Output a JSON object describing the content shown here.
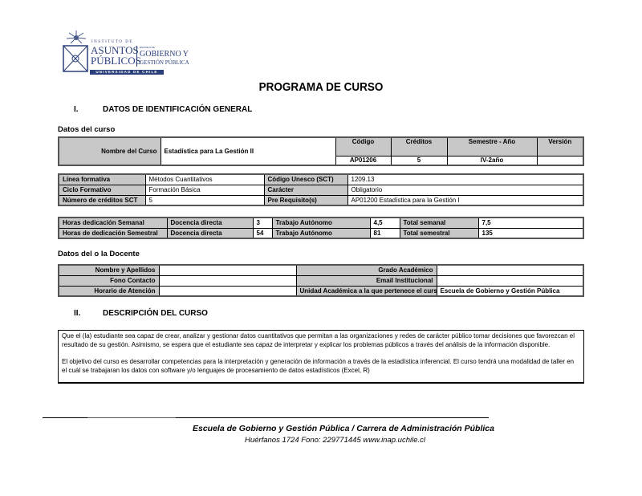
{
  "logo": {
    "line1": "INSTITUTO DE",
    "line2": "ASUNTOS",
    "line3": "PÚBLICOS",
    "line4": "ESCUELA DE",
    "line5": "GOBIERNO Y",
    "line6": "GESTIÓN PÚBLICA",
    "band": "UNIVERSIDAD DE CHILE"
  },
  "title": "PROGRAMA DE CURSO",
  "section1": {
    "num": "I.",
    "title": "DATOS DE IDENTIFICACIÓN GENERAL"
  },
  "datos_curso": {
    "heading": "Datos del curso",
    "nombre_label": "Nombre del Curso",
    "nombre": "Estadística para La Gestión II",
    "codigo_label": "Código",
    "codigo": "AP01206",
    "creditos_label": "Créditos",
    "creditos": "5",
    "semestre_label": "Semestre - Año",
    "semestre": "IV-2año",
    "version_label": "Versión",
    "version": ""
  },
  "info": [
    [
      "Línea formativa",
      "Métodos Cuantitativos",
      "Código Unesco (SCT)",
      "1209.13"
    ],
    [
      "Ciclo Formativo",
      "Formación Básica",
      "Carácter",
      "Obligatorio"
    ],
    [
      "Número de créditos SCT",
      "5",
      "Pre Requisito(s)",
      "AP01200 Estadística para la Gestión I"
    ]
  ],
  "horas": [
    [
      "Horas dedicación Semanal",
      "Docencia directa",
      "3",
      "Trabajo Autónomo",
      "4,5",
      "Total semanal",
      "7,5"
    ],
    [
      "Horas de dedicación Semestral",
      "Docencia directa",
      "54",
      "Trabajo Autónomo",
      "81",
      "Total semestral",
      "135"
    ]
  ],
  "docente": {
    "heading": "Datos del o la Docente",
    "rows": [
      [
        "Nombre y Apellidos",
        "",
        "Grado Académico",
        ""
      ],
      [
        "Fono Contacto",
        "",
        "Email Institucional",
        ""
      ],
      [
        "Horario de Atención",
        "",
        "Unidad Académica a la que pertenece el curso",
        "Escuela de Gobierno y Gestión Pública"
      ]
    ]
  },
  "section2": {
    "num": "II.",
    "title": "DESCRIPCIÓN DEL CURSO"
  },
  "descripcion": {
    "p1": "Que el (la) estudiante sea capaz de crear, analizar y gestionar datos cuantitativos que permitan a las organizaciones y redes de carácter público tomar decisiones que favorezcan el resultado de su gestión. Asimismo, se espera que el estudiante sea capaz de interpretar y explicar los problemas públicos a través del análisis de la información  disponible.",
    "p2": "El objetivo del curso es desarrollar competencias para la interpretación y generación de información a través de la estadística inferencial. El curso tendrá una modalidad de taller en el cuál se trabajaran los datos con software y/o lenguajes de procesamiento de datos estadísticos (Excel, R)"
  },
  "footer": {
    "line1": "Escuela de Gobierno y Gestión Pública / Carrera de Administración Pública",
    "line2": "Huérfanos 1724  Fono: 229771445  www.inap.uchile.cl"
  }
}
